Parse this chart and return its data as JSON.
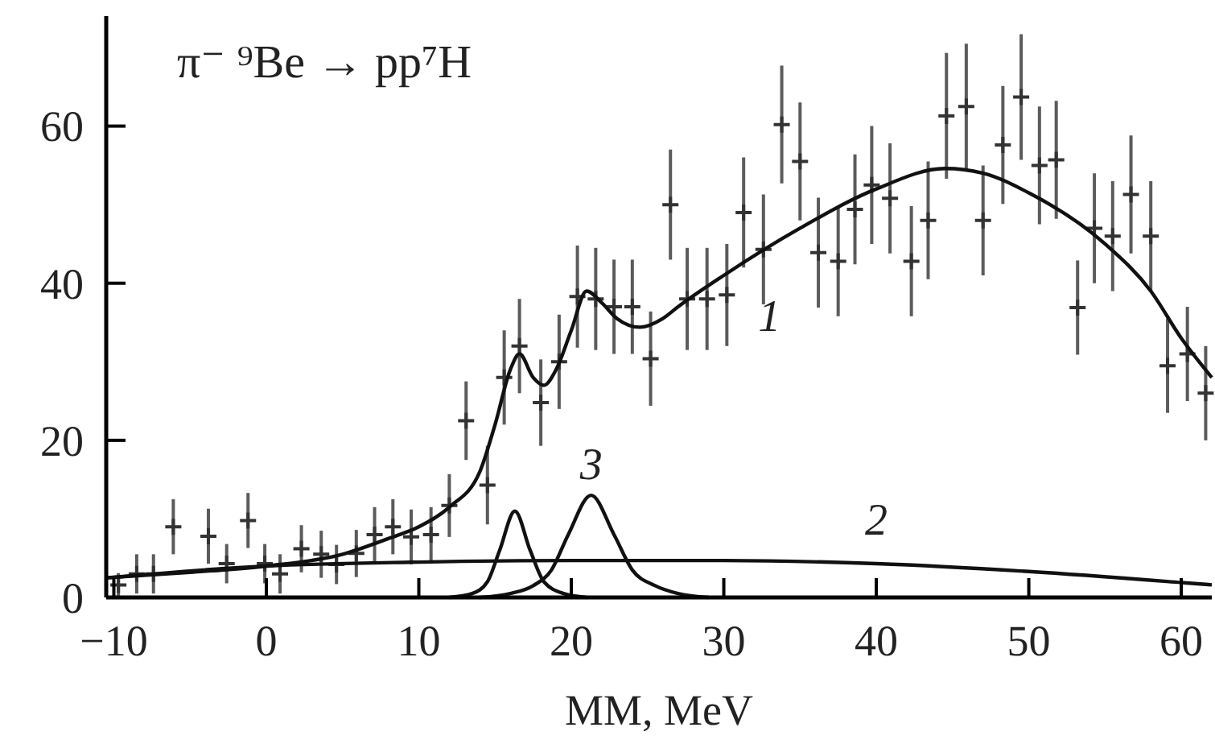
{
  "chart_data": {
    "type": "scatter",
    "title": "π⁻ ⁹Be → pp⁷H",
    "xlabel": "MM, MeV",
    "xlim": [
      -10.5,
      62
    ],
    "ylim": [
      0,
      74
    ],
    "xticks": [
      {
        "value": -10,
        "label": "−10"
      },
      0,
      10,
      20,
      30,
      40,
      50,
      60
    ],
    "yticks": [
      0,
      20,
      40,
      60
    ],
    "grid": false,
    "marker": "none",
    "series": [
      {
        "color": "#333333",
        "marker": "cross",
        "x": [
          -9.7,
          -8.5,
          -7.4,
          -6.1,
          -3.8,
          -2.6,
          -1.2,
          -0.1,
          0.9,
          2.3,
          3.6,
          4.6,
          5.9,
          7.1,
          8.3,
          9.5,
          10.8,
          12,
          13.1,
          14.5,
          15.6,
          16.6,
          18,
          19.2,
          20.4,
          21.6,
          22.8,
          24,
          25.2,
          26.5,
          27.6,
          28.9,
          30.2,
          31.3,
          32.6,
          33.8,
          35,
          36.2,
          37.5,
          38.6,
          39.7,
          40.9,
          42.3,
          43.4,
          44.6,
          45.9,
          47,
          48.3,
          49.5,
          50.7,
          51.8,
          53.2,
          54.3,
          55.5,
          56.7,
          58,
          59.1,
          60.4,
          61.6
        ],
        "values": [
          1.6,
          3,
          3,
          9,
          7.8,
          4.3,
          9.8,
          4.3,
          3,
          6.2,
          5.5,
          4.2,
          5.6,
          8,
          9,
          7.7,
          8,
          11.7,
          22.5,
          14.3,
          28,
          32,
          24.8,
          30,
          38.3,
          38,
          37,
          37,
          30.4,
          50,
          38,
          38,
          38.5,
          49,
          44.3,
          60.2,
          55.5,
          43.9,
          42.8,
          49.4,
          52.5,
          50.8,
          42.8,
          48,
          61.3,
          62.5,
          48,
          57.6,
          63.7,
          55,
          55.7,
          36.9,
          47,
          46,
          51.3,
          46,
          29.5,
          31,
          26
        ],
        "errors": [
          1.5,
          2.5,
          2.5,
          3.5,
          3.5,
          2.5,
          3.5,
          2.5,
          2.5,
          3,
          3,
          2.5,
          3,
          3.5,
          3.5,
          3.5,
          3.5,
          4,
          5,
          5,
          6,
          6,
          5.5,
          6,
          6.5,
          6.5,
          6,
          6,
          6,
          7,
          6.5,
          6.5,
          6.5,
          7,
          7,
          7.5,
          7.5,
          7,
          7,
          7,
          7.5,
          7,
          7,
          7.5,
          8,
          8,
          7,
          7.5,
          8,
          7.5,
          7.5,
          6,
          7,
          7,
          7.5,
          7,
          6,
          6,
          6
        ]
      },
      {
        "type": "line",
        "name": "1",
        "color": "#111111",
        "x": [
          -10.5,
          -5,
          0,
          5,
          8,
          10,
          12,
          14,
          15,
          16,
          16.6,
          17.5,
          18.2,
          19,
          20,
          21,
          22,
          23,
          24.5,
          26,
          27,
          30,
          35,
          40,
          44.5,
          47,
          50,
          55,
          58,
          60,
          62
        ],
        "values": [
          2.5,
          3.2,
          4,
          5.5,
          7.5,
          9,
          11.5,
          16,
          22,
          29,
          31,
          28,
          27,
          29,
          34,
          39,
          37.5,
          35.5,
          34.4,
          35.5,
          37,
          41,
          47,
          52,
          54.6,
          54,
          51.5,
          45,
          39,
          33,
          28
        ]
      },
      {
        "type": "line",
        "name": "2",
        "color": "#111111",
        "x": [
          -10.5,
          0,
          10,
          20,
          30,
          40,
          50,
          60,
          62
        ],
        "values": [
          2.5,
          4,
          4.5,
          4.7,
          4.7,
          4.3,
          3.3,
          1.9,
          1.6
        ]
      },
      {
        "type": "line",
        "color": "#111111",
        "x": [
          12,
          13.5,
          14.5,
          15.3,
          16.3,
          17.3,
          18.2,
          19.5,
          21
        ],
        "values": [
          0,
          0.5,
          2,
          6,
          11,
          6,
          2,
          0.5,
          0
        ]
      },
      {
        "type": "line",
        "name": "3",
        "color": "#111111",
        "x": [
          14,
          16,
          17.5,
          18.7,
          19.8,
          21.3,
          22.8,
          24,
          25.5,
          27,
          29
        ],
        "values": [
          0,
          0.5,
          1.5,
          3.5,
          8,
          13,
          8,
          3.5,
          1.5,
          0.5,
          0
        ]
      }
    ]
  }
}
